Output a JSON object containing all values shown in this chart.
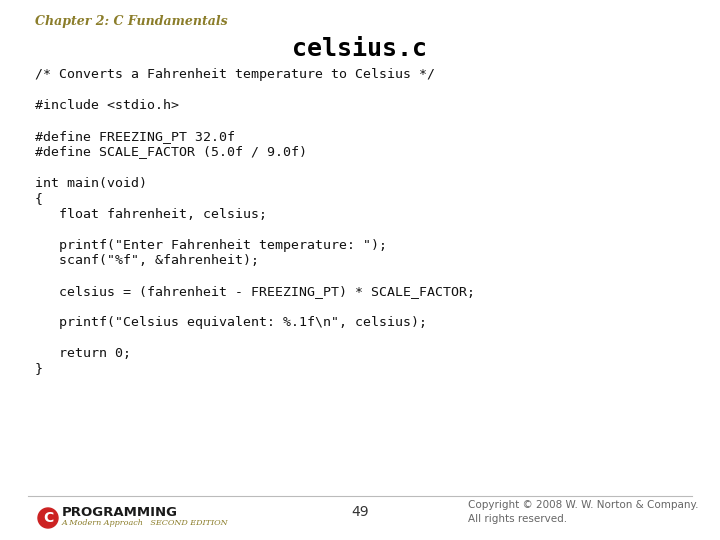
{
  "chapter_title": "Chapter 2: C Fundamentals",
  "chapter_title_color": "#8B7D2A",
  "main_title": "celsius.c",
  "bg_color": "#FFFFFF",
  "code_lines": [
    "/* Converts a Fahrenheit temperature to Celsius */",
    "",
    "#include <stdio.h>",
    "",
    "#define FREEZING_PT 32.0f",
    "#define SCALE_FACTOR (5.0f / 9.0f)",
    "",
    "int main(void)",
    "{",
    "   float fahrenheit, celsius;",
    "",
    "   printf(\"Enter Fahrenheit temperature: \");",
    "   scanf(\"%f\", &fahrenheit);",
    "",
    "   celsius = (fahrenheit - FREEZING_PT) * SCALE_FACTOR;",
    "",
    "   printf(\"Celsius equivalent: %.1f\\n\", celsius);",
    "",
    "   return 0;",
    "}"
  ],
  "code_font_size": 9.5,
  "code_color": "#111111",
  "page_number": "49",
  "footer_text": "Copyright © 2008 W. W. Norton & Company.\nAll rights reserved.",
  "footer_color": "#666666",
  "footer_fontsize": 7.5,
  "chapter_fontsize": 9.0,
  "title_fontsize": 18,
  "logo_programming": "PROGRAMMING",
  "logo_subtitle": "A Modern Approach   SECOND EDITION",
  "logo_C_color": "#CC2222",
  "separator_color": "#BBBBBB",
  "pagenumber_color": "#333333",
  "pagenumber_fontsize": 10
}
